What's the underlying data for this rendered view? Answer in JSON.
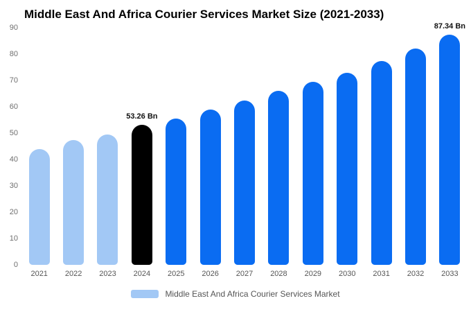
{
  "chart_data": {
    "type": "bar",
    "title": "Middle East And Africa Courier Services Market Size (2021-2033)",
    "categories": [
      "2021",
      "2022",
      "2023",
      "2024",
      "2025",
      "2026",
      "2027",
      "2028",
      "2029",
      "2030",
      "2031",
      "2032",
      "2033"
    ],
    "values": [
      44,
      47.5,
      49.5,
      53.26,
      55.5,
      59,
      62.5,
      66,
      69.5,
      73,
      77.5,
      82,
      87.34
    ],
    "bar_colors": [
      "#a2c8f5",
      "#a2c8f5",
      "#a2c8f5",
      "#000000",
      "#0a6cf2",
      "#0a6cf2",
      "#0a6cf2",
      "#0a6cf2",
      "#0a6cf2",
      "#0a6cf2",
      "#0a6cf2",
      "#0a6cf2",
      "#0a6cf2"
    ],
    "data_labels": [
      "",
      "",
      "",
      "53.26 Bn",
      "",
      "",
      "",
      "",
      "",
      "",
      "",
      "",
      "87.34 Bn"
    ],
    "ylim": [
      0,
      90
    ],
    "yticks": [
      0,
      10,
      20,
      30,
      40,
      50,
      60,
      70,
      80,
      90
    ],
    "grid": false,
    "legend_position": "bottom",
    "legend": [
      {
        "label": "Middle East And Africa Courier Services Market",
        "color": "#a2c8f5"
      }
    ]
  }
}
